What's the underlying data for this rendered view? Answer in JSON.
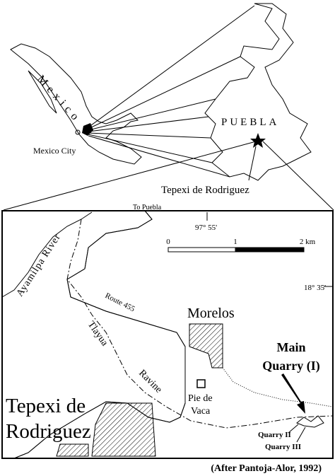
{
  "inset": {
    "country": "Mexico",
    "city": "Mexico City",
    "state": "PUEBLA",
    "town": "Tepexi de Rodriguez"
  },
  "map": {
    "to_puebla": "To Puebla",
    "longitude": "97° 55'",
    "latitude": "18° 35'",
    "scale_labels": [
      "0",
      "1",
      "2 km"
    ],
    "river": "Ayamilpa River",
    "route": "Route 455",
    "ravine": [
      "Tlayua",
      "Ravine"
    ],
    "morelos": "Morelos",
    "main_quarry": [
      "Main",
      "Quarry (I)"
    ],
    "pie_de_vaca": [
      "Pie de",
      "Vaca"
    ],
    "town": [
      "Tepexi de",
      "Rodriguez"
    ],
    "quarry_2": "Quarry II",
    "quarry_3": "Quarry III"
  },
  "credit": "(After Pantoja-Alor, 1992)"
}
